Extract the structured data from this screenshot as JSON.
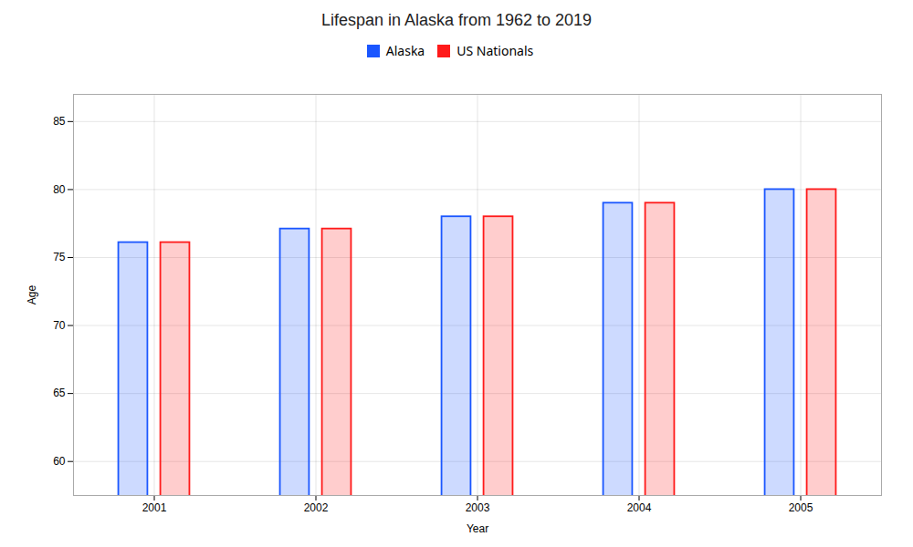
{
  "chart_data": {
    "type": "bar",
    "title": "Lifespan in Alaska from 1962 to 2019",
    "xlabel": "Year",
    "ylabel": "Age",
    "categories": [
      "2001",
      "2002",
      "2003",
      "2004",
      "2005"
    ],
    "series": [
      {
        "name": "Alaska",
        "color": "#1a56ff",
        "values": [
          76.1,
          77.1,
          78.0,
          79.0,
          80.0
        ]
      },
      {
        "name": "US Nationals",
        "color": "#ff1a1a",
        "values": [
          76.1,
          77.1,
          78.0,
          79.0,
          80.0
        ]
      }
    ],
    "ylim": [
      57.5,
      87
    ],
    "yticks": [
      60,
      65,
      70,
      75,
      80,
      85
    ],
    "grid": true,
    "legend": "top"
  }
}
